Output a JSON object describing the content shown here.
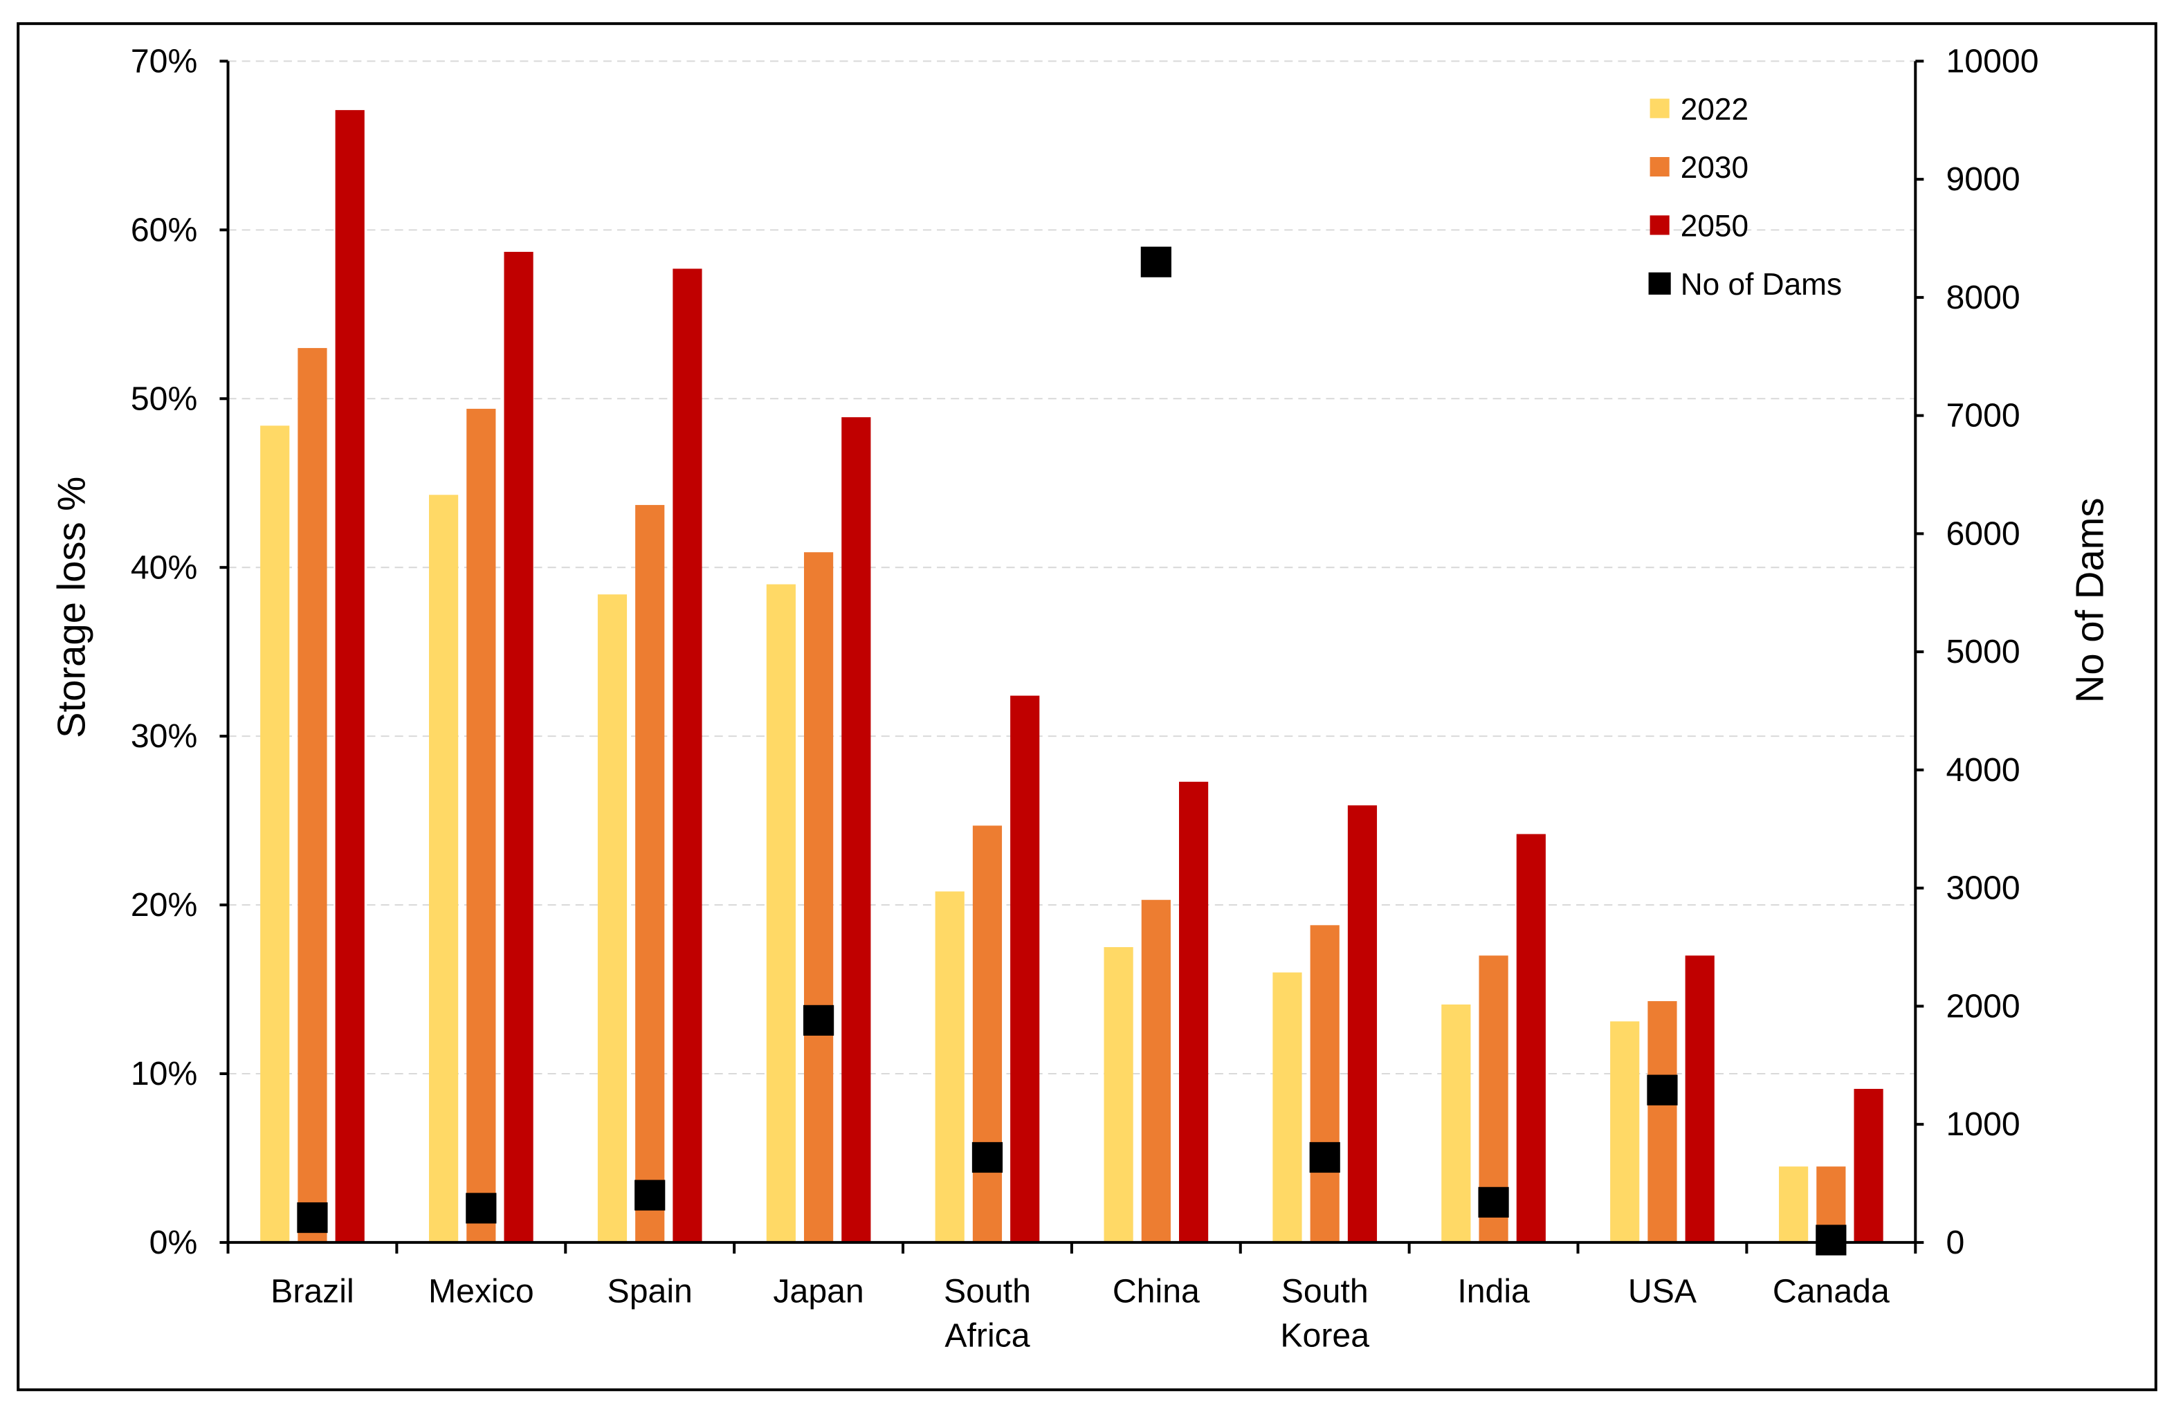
{
  "chart_data": {
    "type": "bar",
    "categories": [
      [
        "Brazil"
      ],
      [
        "Mexico"
      ],
      [
        "Spain"
      ],
      [
        "Japan"
      ],
      [
        "South",
        "Africa"
      ],
      [
        "China"
      ],
      [
        "South",
        "Korea"
      ],
      [
        "India"
      ],
      [
        "USA"
      ],
      [
        "Canada"
      ]
    ],
    "ylabel": "Storage loss %",
    "y2label": "No of Dams",
    "ylim": [
      0,
      70
    ],
    "y2lim": [
      0,
      10000
    ],
    "yticks": [
      "0%",
      "10%",
      "20%",
      "30%",
      "40%",
      "50%",
      "60%",
      "70%"
    ],
    "y2ticks": [
      "0",
      "1000",
      "2000",
      "3000",
      "4000",
      "5000",
      "6000",
      "7000",
      "8000",
      "9000",
      "10000"
    ],
    "grid": true,
    "legend_position": "top-right",
    "series": [
      {
        "name": "2022",
        "type": "bar",
        "color": "#FFD966",
        "values": [
          48.4,
          44.3,
          38.4,
          39.0,
          20.8,
          17.5,
          16.0,
          14.1,
          13.1,
          4.5
        ]
      },
      {
        "name": "2030",
        "type": "bar",
        "color": "#ED7D31",
        "values": [
          53.0,
          49.4,
          43.7,
          40.9,
          24.7,
          20.3,
          18.8,
          17.0,
          14.3,
          4.5
        ]
      },
      {
        "name": "2050",
        "type": "bar",
        "color": "#C00000",
        "values": [
          67.1,
          58.7,
          57.7,
          48.9,
          32.4,
          27.3,
          25.9,
          24.2,
          17.0,
          9.1
        ]
      },
      {
        "name": "No of Dams",
        "type": "marker",
        "axis": "right",
        "color": "#000000",
        "values": [
          210,
          290,
          400,
          1880,
          720,
          8300,
          720,
          340,
          1290,
          20
        ]
      }
    ]
  }
}
